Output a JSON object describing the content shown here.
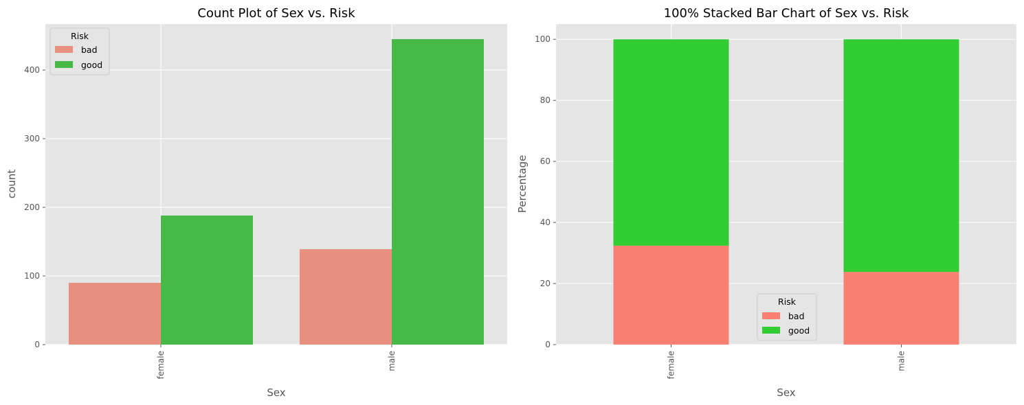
{
  "chart_data": [
    {
      "type": "bar",
      "title": "Count Plot of Sex vs. Risk",
      "xlabel": "Sex",
      "ylabel": "count",
      "categories": [
        "female",
        "male"
      ],
      "ylim": [
        0,
        467
      ],
      "yticks": [
        "0",
        "100",
        "200",
        "300",
        "400"
      ],
      "grid": true,
      "legend": {
        "title": "Risk",
        "position": "upper-left"
      },
      "series": [
        {
          "name": "bad",
          "values": [
            90,
            139
          ],
          "color": "#e8907f"
        },
        {
          "name": "good",
          "values": [
            188,
            445
          ],
          "color": "#46b946"
        }
      ]
    },
    {
      "type": "bar",
      "stacked": true,
      "title": "100% Stacked Bar Chart of Sex vs. Risk",
      "xlabel": "Sex",
      "ylabel": "Percentage",
      "categories": [
        "female",
        "male"
      ],
      "ylim": [
        0,
        105
      ],
      "yticks": [
        "0",
        "20",
        "40",
        "60",
        "80",
        "100"
      ],
      "grid": true,
      "legend": {
        "title": "Risk",
        "position": "lower-center"
      },
      "series": [
        {
          "name": "bad",
          "values": [
            32.4,
            23.8
          ],
          "color": "#fa8072"
        },
        {
          "name": "good",
          "values": [
            67.6,
            76.2
          ],
          "color": "#32cd32"
        }
      ]
    }
  ]
}
